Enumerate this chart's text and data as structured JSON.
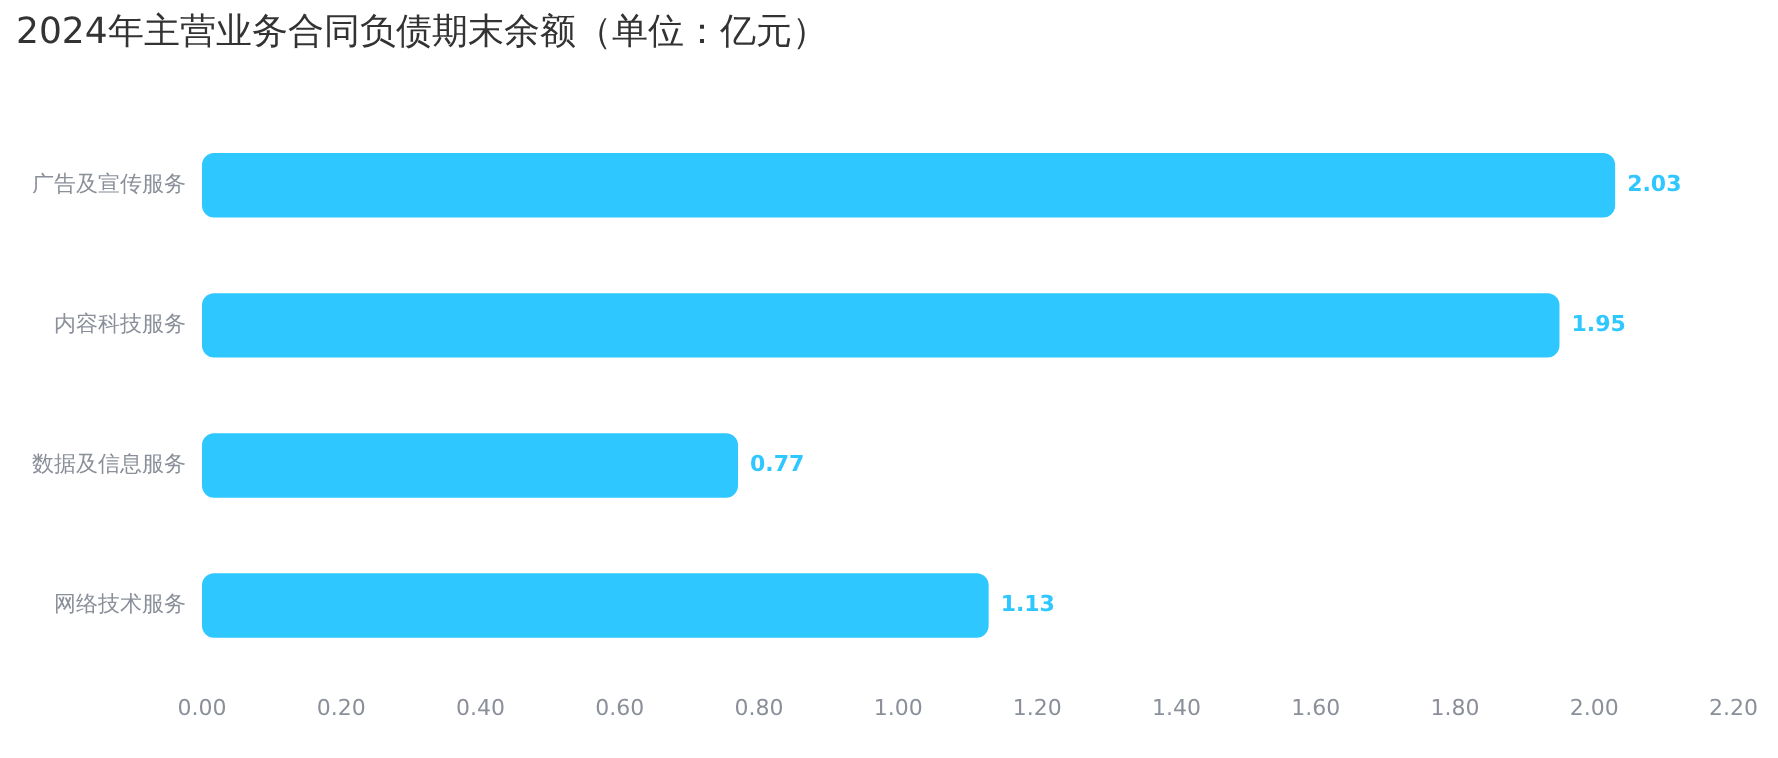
{
  "chart_data": {
    "type": "bar",
    "orientation": "horizontal",
    "title": "2024年主营业务合同负债期末余额（单位：亿元）",
    "categories": [
      "广告及宣传服务",
      "内容科技服务",
      "数据及信息服务",
      "网络技术服务"
    ],
    "values": [
      2.03,
      1.95,
      0.77,
      1.13
    ],
    "color": "#2ec7ff",
    "xlim": [
      0,
      2.2
    ],
    "xticks": [
      {
        "value": 0,
        "label": "0.00"
      },
      {
        "value": 0.2,
        "label": "0.20"
      },
      {
        "value": 0.4,
        "label": "0.40"
      },
      {
        "value": 0.6,
        "label": "0.60"
      },
      {
        "value": 0.8,
        "label": "0.80"
      },
      {
        "value": 1,
        "label": "1.00"
      },
      {
        "value": 1.2,
        "label": "1.20"
      },
      {
        "value": 1.4,
        "label": "1.40"
      },
      {
        "value": 1.6,
        "label": "1.60"
      },
      {
        "value": 1.8,
        "label": "1.80"
      },
      {
        "value": 2,
        "label": "2.00"
      },
      {
        "value": 2.2,
        "label": "2.20"
      }
    ],
    "data_labels": true,
    "grid": false,
    "legend": false
  }
}
